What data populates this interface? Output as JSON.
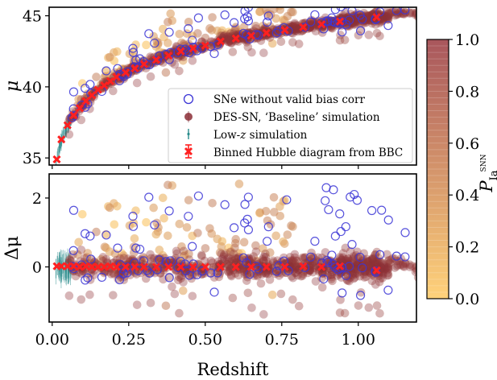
{
  "chart_data": [
    {
      "type": "scatter",
      "panel": "top",
      "ylabel": "μ",
      "xlabel": "",
      "xlim": [
        -0.01,
        1.19
      ],
      "ylim": [
        34.5,
        45.6
      ],
      "yticks": [
        35,
        40,
        45
      ],
      "grid": false,
      "legend_position": "lower-right",
      "legend": [
        {
          "label": "SNe without valid bias corr",
          "marker": "open-circle",
          "color": "#3b35d6"
        },
        {
          "label": "DES-SN, ‘Baseline’ simulation",
          "marker": "filled-circle",
          "color": "#8b2e36"
        },
        {
          "label": "Low-z simulation",
          "marker": "errorbar-point",
          "color": "#2a8c8c"
        },
        {
          "label": "Binned Hubble diagram from BBC",
          "marker": "x-errorbar",
          "color": "#ff2020"
        }
      ],
      "series": [
        {
          "name": "Binned Hubble diagram from BBC",
          "x": [
            0.015,
            0.03,
            0.05,
            0.07,
            0.09,
            0.11,
            0.13,
            0.15,
            0.17,
            0.19,
            0.21,
            0.24,
            0.27,
            0.3,
            0.34,
            0.38,
            0.42,
            0.46,
            0.5,
            0.55,
            0.6,
            0.65,
            0.7,
            0.76,
            0.82,
            0.88,
            0.94,
            1.06
          ],
          "y": [
            34.9,
            36.3,
            37.3,
            38.0,
            38.5,
            39.0,
            39.4,
            39.8,
            40.1,
            40.4,
            40.7,
            41.0,
            41.3,
            41.6,
            41.9,
            42.2,
            42.5,
            42.7,
            42.9,
            43.2,
            43.4,
            43.6,
            43.8,
            44.0,
            44.2,
            44.4,
            44.6,
            44.9
          ]
        }
      ]
    },
    {
      "type": "scatter",
      "panel": "bottom",
      "ylabel": "Δμ",
      "xlabel": "Redshift",
      "xlim": [
        -0.01,
        1.19
      ],
      "ylim": [
        -1.6,
        2.7
      ],
      "yticks": [
        0,
        2
      ],
      "xticks": [
        0.0,
        0.25,
        0.5,
        0.75,
        1.0
      ],
      "xticklabels": [
        "0.00",
        "0.25",
        "0.50",
        "0.75",
        "1.00"
      ],
      "grid": false,
      "series": [
        {
          "name": "Binned Hubble diagram from BBC",
          "x": [
            0.015,
            0.03,
            0.05,
            0.07,
            0.09,
            0.11,
            0.13,
            0.15,
            0.17,
            0.19,
            0.21,
            0.24,
            0.27,
            0.3,
            0.34,
            0.38,
            0.42,
            0.46,
            0.5,
            0.55,
            0.6,
            0.65,
            0.7,
            0.76,
            0.82,
            0.88,
            0.94,
            1.06
          ],
          "y": [
            0.02,
            0.02,
            0.02,
            0.02,
            0.0,
            0.02,
            0.0,
            0.0,
            0.0,
            0.02,
            0.0,
            0.0,
            0.0,
            0.0,
            0.0,
            0.0,
            0.0,
            0.0,
            0.0,
            0.0,
            0.0,
            0.0,
            0.0,
            0.0,
            0.02,
            0.0,
            0.02,
            -0.1
          ]
        }
      ]
    }
  ],
  "colorbar": {
    "label": "P",
    "label_sub": "Ia",
    "label_sup": "SNN",
    "range": [
      0.0,
      1.0
    ],
    "ticks": [
      "0.0",
      "0.2",
      "0.4",
      "0.6",
      "0.8",
      "1.0"
    ],
    "color_low": "#ffd27a",
    "color_high": "#a8565c"
  },
  "colors": {
    "open_circle": "#3b35d6",
    "high_prob": "#8b2e36",
    "low_prob": "#f6b040",
    "lowz": "#2a8c8c",
    "binned": "#ff2020"
  }
}
